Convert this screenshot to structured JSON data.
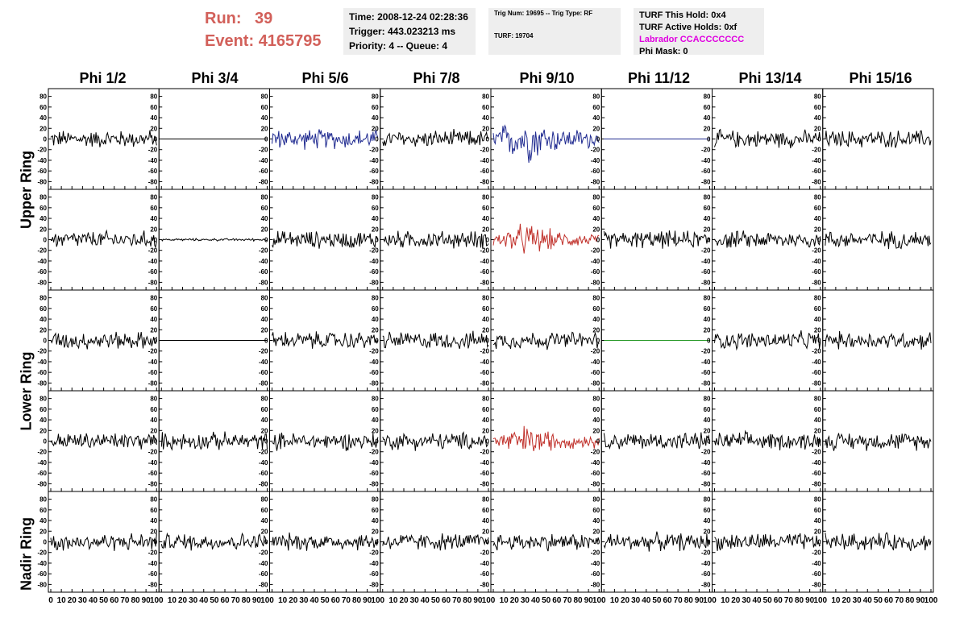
{
  "header": {
    "run_label": "Run:",
    "run_value": "39",
    "event_label": "Event:",
    "event_value": "4165795",
    "time": "Time: 2008-12-24 02:28:36",
    "trigger": "Trigger: 443.023213 ms",
    "priority": "Priority: 4 -- Queue: 4",
    "trig_num": "Trig Num: 19695 -- Trig Type: RF",
    "turf": "TURF: 19704",
    "turf_hold": "TURF This Hold: 0x4",
    "turf_active": "TURF Active Holds: 0xf",
    "labrador": "Labrador CCACCCCCCC",
    "phi_mask": "Phi Mask: 0"
  },
  "columns": [
    "Phi 1/2",
    "Phi 3/4",
    "Phi 5/6",
    "Phi 7/8",
    "Phi 9/10",
    "Phi 11/12",
    "Phi 13/14",
    "Phi 15/16"
  ],
  "ring_labels": [
    "Upper Ring",
    "Lower Ring",
    "Nadir Ring"
  ],
  "chart_data": {
    "type": "line",
    "rows": 5,
    "cols": 8,
    "y_ticks": [
      80,
      60,
      40,
      20,
      0,
      -20,
      -40,
      -60,
      -80
    ],
    "y_tick_labels": [
      "80",
      "60",
      "40",
      "20",
      "0",
      "-20",
      "-40",
      "-60",
      "-80"
    ],
    "x_ticks": [
      0,
      10,
      20,
      30,
      40,
      50,
      60,
      70,
      80,
      90,
      100
    ],
    "x_tick_labels": [
      "0",
      "10",
      "20",
      "30",
      "40",
      "50",
      "60",
      "70",
      "80",
      "90",
      "100"
    ],
    "ylim": [
      -90,
      90
    ],
    "xlim": [
      0,
      100
    ],
    "colors": {
      "default": "#000000",
      "blue": "#1f2a90",
      "red": "#c0302a",
      "green": "#2a9a2a"
    },
    "panels": [
      [
        "black",
        "flat",
        "blue",
        "black",
        "blue-big",
        "flat-blue",
        "black",
        "black"
      ],
      [
        "black",
        "small",
        "black",
        "black",
        "red",
        "black",
        "black",
        "black"
      ],
      [
        "black",
        "flat",
        "black",
        "black",
        "black",
        "flat-green",
        "black",
        "black"
      ],
      [
        "black",
        "black",
        "black",
        "black",
        "red",
        "black",
        "black",
        "black"
      ],
      [
        "black",
        "black",
        "black",
        "black",
        "black",
        "black",
        "black",
        "black"
      ]
    ]
  }
}
